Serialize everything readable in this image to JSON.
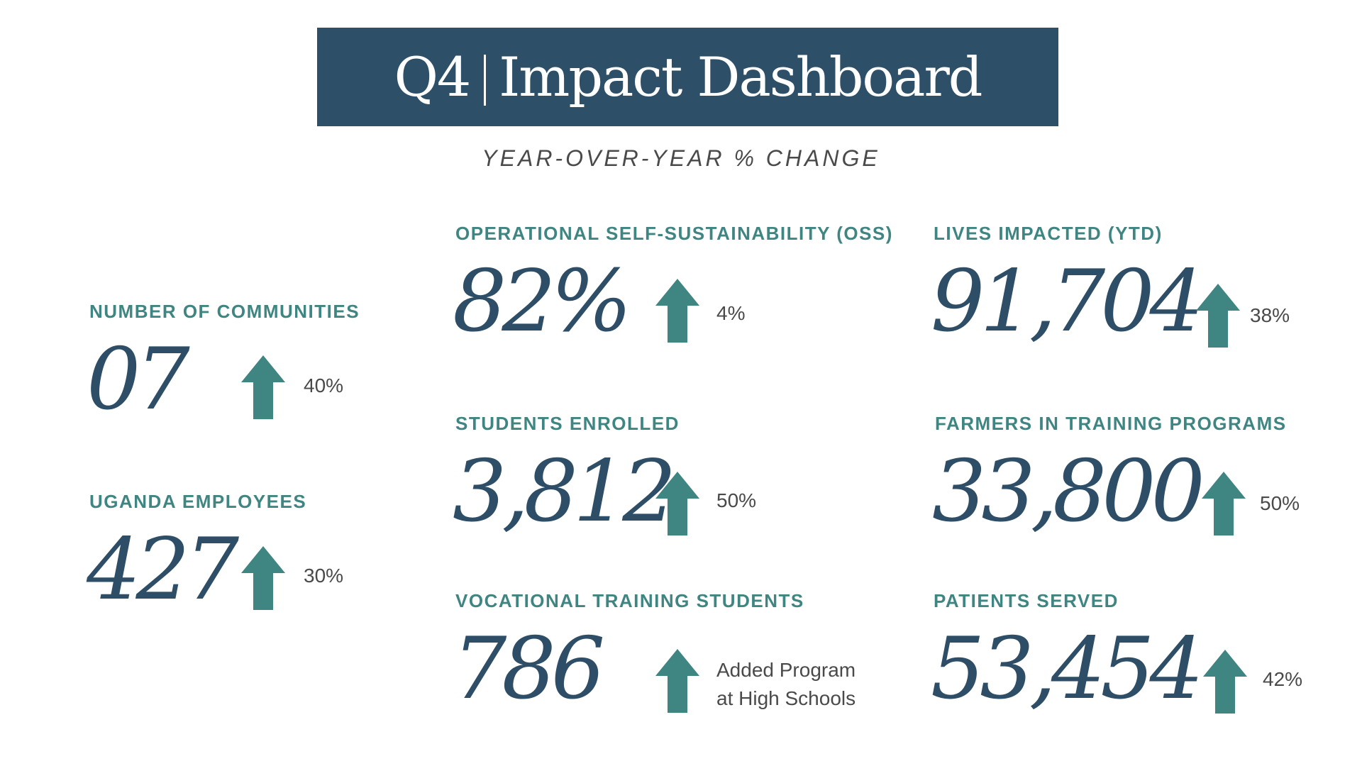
{
  "header": {
    "title_left": "Q4",
    "title_right": "Impact Dashboard",
    "subtitle": "YEAR-OVER-YEAR % CHANGE"
  },
  "colors": {
    "title_bg": "#2d5068",
    "label": "#3f8582",
    "value": "#2d4e66",
    "arrow": "#3f8582",
    "change_text": "#4a4a4a"
  },
  "metrics": [
    {
      "label": "NUMBER OF COMMUNITIES",
      "value": "07",
      "change": "40%",
      "trend_icon": "arrow-up-icon"
    },
    {
      "label": "UGANDA EMPLOYEES",
      "value": "427",
      "change": "30%",
      "trend_icon": "arrow-up-icon"
    },
    {
      "label": "OPERATIONAL SELF-SUSTAINABILITY (OSS)",
      "value": "82%",
      "change": "4%",
      "trend_icon": "arrow-up-icon"
    },
    {
      "label": "STUDENTS ENROLLED",
      "value": "3,812",
      "change": "50%",
      "trend_icon": "arrow-up-icon"
    },
    {
      "label": "VOCATIONAL TRAINING STUDENTS",
      "value": "786",
      "change_line1": "Added Program",
      "change_line2": "at High Schools",
      "trend_icon": "arrow-up-icon"
    },
    {
      "label": "LIVES IMPACTED (YTD)",
      "value": "91,704",
      "change": "38%",
      "trend_icon": "arrow-up-icon"
    },
    {
      "label": "FARMERS IN TRAINING PROGRAMS",
      "value": "33,800",
      "change": "50%",
      "trend_icon": "arrow-up-icon"
    },
    {
      "label": "PATIENTS SERVED",
      "value": "53,454",
      "change": "42%",
      "trend_icon": "arrow-up-icon"
    }
  ]
}
